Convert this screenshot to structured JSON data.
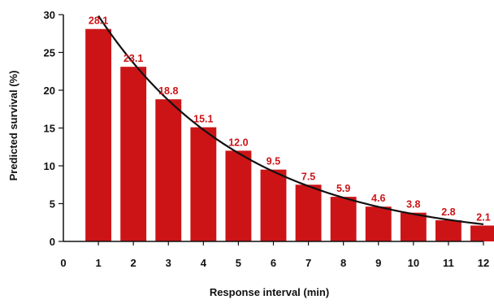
{
  "chart_data": {
    "type": "bar",
    "title": "",
    "xlabel": "Response interval (min)",
    "ylabel": "Predicted survival (%)",
    "categories": [
      1,
      2,
      3,
      4,
      5,
      6,
      7,
      8,
      9,
      10,
      11,
      12
    ],
    "values": [
      28.1,
      23.1,
      18.8,
      15.1,
      12.0,
      9.5,
      7.5,
      5.9,
      4.6,
      3.8,
      2.8,
      2.1
    ],
    "data_labels": [
      "28.1",
      "23.1",
      "18.8",
      "15.1",
      "12.0",
      "9.5",
      "7.5",
      "5.9",
      "4.6",
      "3.8",
      "2.8",
      "2.1"
    ],
    "x_ticks": [
      "0",
      "1",
      "2",
      "3",
      "4",
      "5",
      "6",
      "7",
      "8",
      "9",
      "10",
      "11",
      "12"
    ],
    "y_ticks": [
      "0",
      "5",
      "10",
      "15",
      "20",
      "25",
      "30"
    ],
    "xlim": [
      0,
      12
    ],
    "ylim": [
      0,
      30
    ],
    "grid": false,
    "legend": "none",
    "trend_line": {
      "type": "exponential fit",
      "color": "#111111"
    },
    "colors": {
      "bar": "#cc1417",
      "label": "#cc1417",
      "axis": "#111111"
    }
  }
}
